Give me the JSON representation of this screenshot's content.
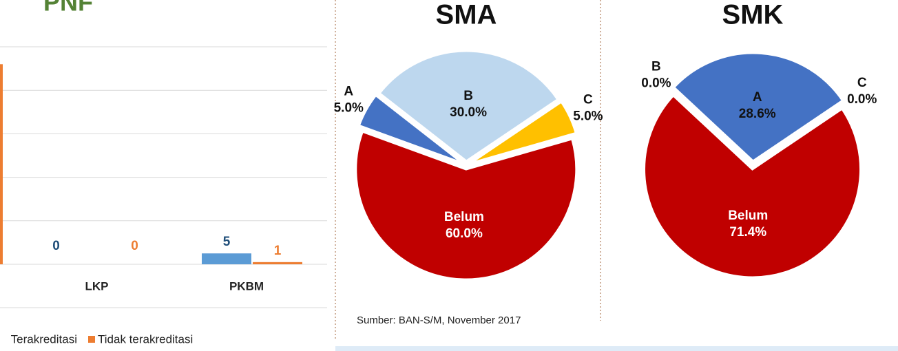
{
  "source": "Sumber: BAN-S/M, November 2017",
  "chart_data": [
    {
      "type": "bar",
      "title": "PNF",
      "categories": [
        null,
        "LKP",
        "PKBM"
      ],
      "series": [
        {
          "name": "Terakreditasi",
          "color": "#5b9bd5",
          "label_color": "#1f4e79",
          "values": [
            null,
            0,
            5
          ]
        },
        {
          "name": "Tidak terakreditasi",
          "color": "#ed7d31",
          "label_color": "#ed7d31",
          "values": [
            92,
            0,
            1
          ]
        }
      ],
      "ylim": [
        0,
        100
      ],
      "yticks": [
        0,
        20,
        40,
        60,
        80,
        100
      ],
      "grid": true,
      "legend": "bottom"
    },
    {
      "type": "pie",
      "title": "SMA",
      "start_angle": 290,
      "categories": [
        "A",
        "B",
        "C",
        "Belum"
      ],
      "values": [
        5.0,
        30.0,
        5.0,
        60.0
      ],
      "value_labels": [
        "5.0%",
        "30.0%",
        "5.0%",
        "60.0%"
      ],
      "colors": [
        "#4472c4",
        "#bdd7ee",
        "#ffc000",
        "#c00000"
      ]
    },
    {
      "type": "pie",
      "title": "SMK",
      "start_angle": 313,
      "categories": [
        "B",
        "A",
        "C",
        "Belum"
      ],
      "values": [
        0.0,
        28.6,
        0.0,
        71.4
      ],
      "value_labels": [
        "0.0%",
        "28.6%",
        "0.0%",
        "71.4%"
      ],
      "colors": [
        "#bdd7ee",
        "#4472c4",
        "#a5a5a5",
        "#c00000"
      ]
    }
  ]
}
